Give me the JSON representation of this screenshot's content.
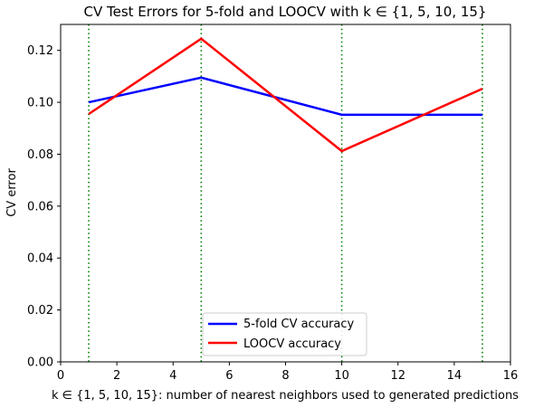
{
  "chart_data": {
    "type": "line",
    "title": "CV Test Errors for 5-fold and LOOCV with k ∈ {1, 5, 10, 15}",
    "xlabel": "k ∈ {1, 5, 10, 15}: number of nearest neighbors used to generated predictions",
    "ylabel": "CV error",
    "xlim": [
      0,
      16
    ],
    "ylim": [
      0,
      0.13
    ],
    "x_ticks": [
      0,
      2,
      4,
      6,
      8,
      10,
      12,
      14,
      16
    ],
    "x_tick_labels": [
      "0",
      "2",
      "4",
      "6",
      "8",
      "10",
      "12",
      "14",
      "16"
    ],
    "y_ticks": [
      0,
      0.02,
      0.04,
      0.06,
      0.08,
      0.1,
      0.12
    ],
    "y_tick_labels": [
      "0.00",
      "0.02",
      "0.04",
      "0.06",
      "0.08",
      "0.10",
      "0.12"
    ],
    "x": [
      1,
      5,
      10,
      15
    ],
    "series": [
      {
        "name": "5-fold CV accuracy",
        "color": "#0000ff",
        "values": [
          0.1,
          0.1095,
          0.0952,
          0.0952
        ]
      },
      {
        "name": "LOOCV accuracy",
        "color": "#ff0000",
        "values": [
          0.0955,
          0.1245,
          0.0812,
          0.1052
        ]
      }
    ],
    "vlines": {
      "x": [
        1,
        5,
        10,
        15
      ],
      "color": "#008000",
      "style": "dotted"
    },
    "legend_position": "bottom-center",
    "grid": false
  }
}
